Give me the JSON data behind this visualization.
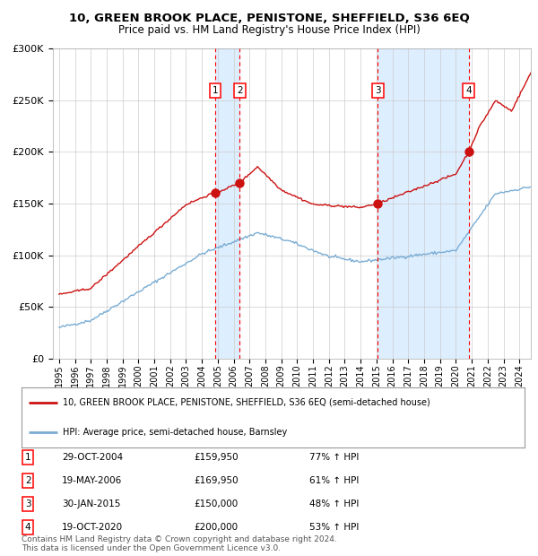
{
  "title": "10, GREEN BROOK PLACE, PENISTONE, SHEFFIELD, S36 6EQ",
  "subtitle": "Price paid vs. HM Land Registry's House Price Index (HPI)",
  "legend_line1": "10, GREEN BROOK PLACE, PENISTONE, SHEFFIELD, S36 6EQ (semi-detached house)",
  "legend_line2": "HPI: Average price, semi-detached house, Barnsley",
  "footer1": "Contains HM Land Registry data © Crown copyright and database right 2024.",
  "footer2": "This data is licensed under the Open Government Licence v3.0.",
  "transactions": [
    {
      "num": 1,
      "date": "29-OCT-2004",
      "price": 159950,
      "pct": "77%",
      "dir": "↑",
      "year_x": 2004.83
    },
    {
      "num": 2,
      "date": "19-MAY-2006",
      "price": 169950,
      "pct": "61%",
      "dir": "↑",
      "year_x": 2006.38
    },
    {
      "num": 3,
      "date": "30-JAN-2015",
      "price": 150000,
      "pct": "48%",
      "dir": "↑",
      "year_x": 2015.08
    },
    {
      "num": 4,
      "date": "19-OCT-2020",
      "price": 200000,
      "pct": "53%",
      "dir": "↑",
      "year_x": 2020.8
    }
  ],
  "hpi_color": "#7aadd4",
  "price_color": "#cc1111",
  "bg_color": "#ffffff",
  "plot_bg": "#ffffff",
  "grid_color": "#cccccc",
  "vspan_color": "#ddeeff",
  "ylim": [
    0,
    300000
  ],
  "yticks": [
    0,
    50000,
    100000,
    150000,
    200000,
    250000,
    300000
  ],
  "xlim_left": 1994.6,
  "xlim_right": 2024.7
}
